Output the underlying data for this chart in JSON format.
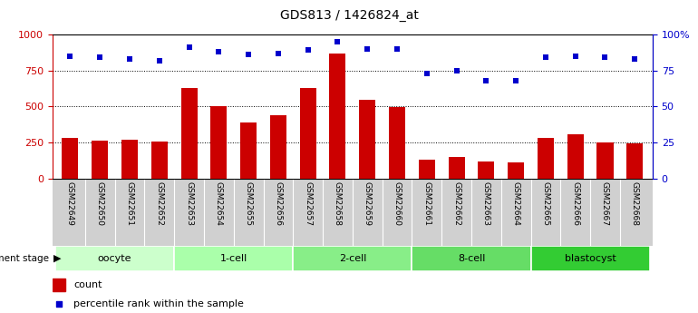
{
  "title": "GDS813 / 1426824_at",
  "samples": [
    "GSM22649",
    "GSM22650",
    "GSM22651",
    "GSM22652",
    "GSM22653",
    "GSM22654",
    "GSM22655",
    "GSM22656",
    "GSM22657",
    "GSM22658",
    "GSM22659",
    "GSM22660",
    "GSM22661",
    "GSM22662",
    "GSM22663",
    "GSM22664",
    "GSM22665",
    "GSM22666",
    "GSM22667",
    "GSM22668"
  ],
  "counts": [
    280,
    265,
    270,
    255,
    625,
    500,
    390,
    440,
    630,
    870,
    545,
    495,
    130,
    150,
    120,
    110,
    280,
    305,
    250,
    245
  ],
  "percentiles": [
    85,
    84,
    83,
    82,
    91,
    88,
    86,
    87,
    89,
    95,
    90,
    90,
    73,
    75,
    68,
    68,
    84,
    85,
    84,
    83
  ],
  "groups": [
    {
      "label": "oocyte",
      "start": 0,
      "end": 3,
      "color": "#ccffcc"
    },
    {
      "label": "1-cell",
      "start": 4,
      "end": 7,
      "color": "#aaffaa"
    },
    {
      "label": "2-cell",
      "start": 8,
      "end": 11,
      "color": "#88ee88"
    },
    {
      "label": "8-cell",
      "start": 12,
      "end": 15,
      "color": "#66dd66"
    },
    {
      "label": "blastocyst",
      "start": 16,
      "end": 19,
      "color": "#33cc33"
    }
  ],
  "bar_color": "#cc0000",
  "dot_color": "#0000cc",
  "ylim_left": [
    0,
    1000
  ],
  "ylim_right": [
    0,
    100
  ],
  "yticks_left": [
    0,
    250,
    500,
    750,
    1000
  ],
  "ytick_labels_left": [
    "0",
    "250",
    "500",
    "750",
    "1000"
  ],
  "yticks_right": [
    0,
    25,
    50,
    75,
    100
  ],
  "ytick_labels_right": [
    "0",
    "25",
    "50",
    "75",
    "100%"
  ],
  "ylabel_left_color": "#cc0000",
  "ylabel_right_color": "#0000cc",
  "label_bg_color": "#d0d0d0",
  "title_fontsize": 10,
  "tick_fontsize": 8,
  "sample_fontsize": 6.5
}
